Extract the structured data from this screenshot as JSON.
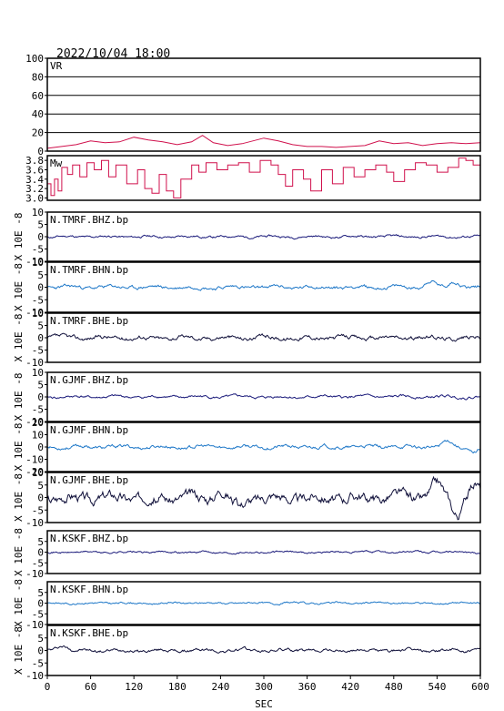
{
  "header": {
    "timestamp": "2022/10/04 18:00"
  },
  "colors": {
    "frame": "#000000",
    "grid": "#000000",
    "vr_line": "#d0104c",
    "mw_line": "#d0104c",
    "navy": "#1a1a7a",
    "blue": "#1f78c8",
    "black_navy": "#10103a"
  },
  "chart_data": {
    "type": "line",
    "xlabel": "SEC",
    "xlim": [
      0,
      600
    ],
    "xticks": [
      "0",
      "60",
      "120",
      "180",
      "240",
      "300",
      "360",
      "420",
      "480",
      "540",
      "600"
    ],
    "panels": [
      {
        "id": "vr",
        "label": "VR",
        "ylabel": "",
        "ylim": [
          0,
          100
        ],
        "yticks": [
          "0",
          "20",
          "40",
          "60",
          "80",
          "100"
        ],
        "grid": true,
        "series": {
          "x": [
            0,
            20,
            40,
            60,
            80,
            100,
            120,
            140,
            160,
            180,
            200,
            215,
            230,
            250,
            270,
            300,
            320,
            340,
            360,
            380,
            400,
            420,
            440,
            460,
            480,
            500,
            520,
            540,
            560,
            580,
            600
          ],
          "y": [
            3,
            5,
            7,
            11,
            9,
            10,
            15,
            12,
            10,
            7,
            10,
            17,
            9,
            6,
            8,
            14,
            11,
            7,
            5,
            5,
            4,
            5,
            6,
            11,
            8,
            9,
            6,
            8,
            9,
            8,
            9
          ]
        }
      },
      {
        "id": "mw",
        "label": "Mw",
        "ylabel": "",
        "ylim": [
          2.95,
          3.9
        ],
        "yticks": [
          "3.0",
          "3.2",
          "3.4",
          "3.6",
          "3.8"
        ],
        "grid": false,
        "series": {
          "x": [
            0,
            5,
            10,
            15,
            20,
            28,
            35,
            45,
            55,
            65,
            75,
            85,
            95,
            110,
            125,
            135,
            145,
            155,
            165,
            175,
            185,
            200,
            210,
            220,
            235,
            250,
            265,
            280,
            295,
            310,
            320,
            330,
            340,
            355,
            365,
            380,
            395,
            410,
            425,
            440,
            455,
            470,
            480,
            495,
            510,
            525,
            540,
            555,
            570,
            580,
            590,
            600
          ],
          "y": [
            3.3,
            3.05,
            3.4,
            3.15,
            3.65,
            3.5,
            3.7,
            3.45,
            3.75,
            3.6,
            3.8,
            3.45,
            3.7,
            3.3,
            3.6,
            3.2,
            3.1,
            3.5,
            3.15,
            3.0,
            3.4,
            3.7,
            3.55,
            3.75,
            3.6,
            3.7,
            3.75,
            3.55,
            3.8,
            3.7,
            3.5,
            3.25,
            3.6,
            3.4,
            3.15,
            3.6,
            3.3,
            3.65,
            3.45,
            3.6,
            3.7,
            3.55,
            3.35,
            3.6,
            3.75,
            3.7,
            3.55,
            3.65,
            3.85,
            3.8,
            3.7,
            3.75
          ]
        }
      },
      {
        "id": "tmr-bhz",
        "label": "N.TMRF.BHZ.bp",
        "ylabel": "X 10E -8",
        "ylim": [
          -10,
          10
        ],
        "yticks": [
          "-10",
          "-5",
          "0",
          "5",
          "10"
        ],
        "color": "navy",
        "amp": 0.6,
        "seed": 11,
        "bursts": []
      },
      {
        "id": "tmr-bhn",
        "label": "N.TMRF.BHN.bp",
        "ylabel": "X 10E -8",
        "ylim": [
          -10,
          10
        ],
        "yticks": [
          "-10",
          "-5",
          "0",
          "5",
          "10"
        ],
        "color": "blue",
        "amp": 0.9,
        "seed": 23,
        "bursts": [
          [
            530,
            2.5
          ],
          [
            565,
            2.5
          ]
        ]
      },
      {
        "id": "tmr-bhe",
        "label": "N.TMRF.BHE.bp",
        "ylabel": "X 10E -8",
        "ylim": [
          -10,
          10
        ],
        "yticks": [
          "-10",
          "-5",
          "0",
          "5",
          "10"
        ],
        "color": "black_navy",
        "amp": 1.1,
        "seed": 37,
        "bursts": []
      },
      {
        "id": "gjm-bhz",
        "label": "N.GJMF.BHZ.bp",
        "ylabel": "X 10E -8",
        "ylim": [
          -10,
          10
        ],
        "yticks": [
          "-10",
          "-5",
          "0",
          "5",
          "10"
        ],
        "color": "navy",
        "amp": 0.7,
        "seed": 41,
        "bursts": []
      },
      {
        "id": "gjm-bhn",
        "label": "N.GJMF.BHN.bp",
        "ylabel": "X 10E -8",
        "ylim": [
          -20,
          20
        ],
        "yticks": [
          "-20",
          "-10",
          "0",
          "10",
          "20"
        ],
        "color": "blue",
        "amp": 1.8,
        "seed": 53,
        "bursts": [
          [
            555,
            5
          ],
          [
            590,
            -4
          ]
        ]
      },
      {
        "id": "gjm-bhe",
        "label": "N.GJMF.BHE.bp",
        "ylabel": "X 10E -8",
        "ylim": [
          -10,
          10
        ],
        "yticks": [
          "-10",
          "-5",
          "0",
          "5",
          "10"
        ],
        "color": "black_navy",
        "amp": 2.6,
        "seed": 67,
        "bursts": [
          [
            240,
            4
          ],
          [
            265,
            -4
          ],
          [
            540,
            5
          ],
          [
            568,
            -6
          ],
          [
            592,
            5
          ]
        ]
      },
      {
        "id": "ksk-bhz",
        "label": "N.KSKF.BHZ.bp",
        "ylabel": "X 10E -8",
        "ylim": [
          -10,
          10
        ],
        "yticks": [
          "-10",
          "-5",
          "0",
          "5"
        ],
        "color": "navy",
        "amp": 0.6,
        "seed": 71,
        "bursts": []
      },
      {
        "id": "ksk-bhn",
        "label": "N.KSKF.BHN.bp",
        "ylabel": "X 10E -8",
        "ylim": [
          -10,
          10
        ],
        "yticks": [
          "-10",
          "-5",
          "0",
          "5"
        ],
        "color": "blue",
        "amp": 0.6,
        "seed": 83,
        "bursts": []
      },
      {
        "id": "ksk-bhe",
        "label": "N.KSKF.BHE.bp",
        "ylabel": "X 10E -8",
        "ylim": [
          -10,
          10
        ],
        "yticks": [
          "-10",
          "-5",
          "0",
          "5"
        ],
        "color": "black_navy",
        "amp": 0.8,
        "seed": 97,
        "bursts": [
          [
            20,
            2
          ]
        ]
      }
    ]
  }
}
